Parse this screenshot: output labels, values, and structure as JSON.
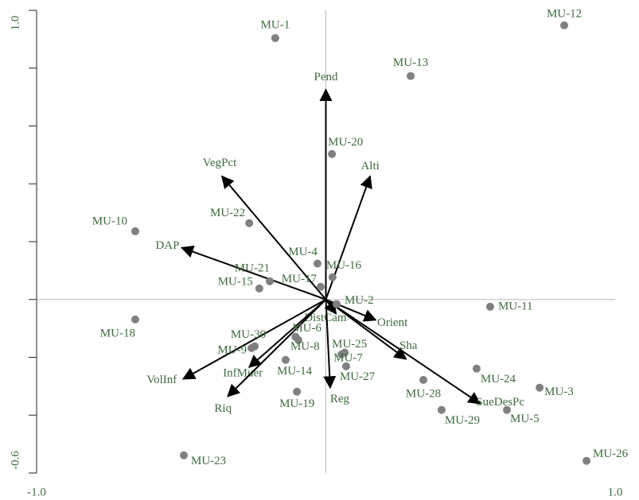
{
  "chart_data": {
    "type": "biplot",
    "points": {
      "labels": [
        "MU-1",
        "MU-12",
        "MU-13",
        "MU-20",
        "MU-10",
        "MU-22",
        "MU-4",
        "MU-16",
        "MU-21",
        "MU-15",
        "MU-17",
        "MU-2",
        "MU-11",
        "MU-18",
        "MU-6",
        "MU-30",
        "MU-9",
        "MU-8",
        "MU-25",
        "MU-7",
        "MU-27",
        "MU-14",
        "MU-19",
        "MU-28",
        "MU-24",
        "MU-3",
        "MU-29",
        "MU-5",
        "MU-26",
        "MU-23"
      ],
      "x": [
        -0.175,
        0.824,
        0.293,
        0.021,
        -0.659,
        -0.265,
        -0.029,
        0.023,
        -0.194,
        -0.23,
        -0.018,
        0.037,
        0.568,
        -0.659,
        -0.105,
        -0.246,
        -0.257,
        -0.095,
        0.065,
        0.054,
        0.07,
        -0.139,
        -0.1,
        0.337,
        0.521,
        0.739,
        0.4,
        0.626,
        0.901,
        -0.491
      ],
      "y": [
        0.904,
        0.948,
        0.773,
        0.503,
        0.236,
        0.264,
        0.124,
        0.077,
        0.063,
        0.038,
        0.044,
        -0.016,
        -0.025,
        -0.069,
        -0.129,
        -0.162,
        -0.168,
        -0.14,
        -0.184,
        -0.19,
        -0.231,
        -0.209,
        -0.319,
        -0.278,
        -0.239,
        -0.305,
        -0.382,
        -0.382,
        -0.558,
        -0.539
      ],
      "color": "#808080",
      "label_color": "#3d6b3d"
    },
    "vectors": {
      "labels": [
        "Pend",
        "Alti",
        "VegPct",
        "DAP",
        "Orient",
        "DistCam",
        "Sha",
        "SueDesPc",
        "Reg",
        "InfMuer",
        "Riq",
        "VolInf"
      ],
      "x": [
        0.0,
        0.153,
        -0.359,
        -0.498,
        0.172,
        0.035,
        0.277,
        0.533,
        0.015,
        -0.265,
        -0.339,
        -0.493
      ],
      "y": [
        0.726,
        0.426,
        0.426,
        0.179,
        -0.071,
        -0.049,
        -0.206,
        -0.36,
        -0.305,
        -0.234,
        -0.335,
        -0.275
      ],
      "color": "#000000",
      "label_color": "#3d6b3d"
    },
    "xlim": [
      -1,
      1
    ],
    "ylim": [
      -0.6,
      1
    ],
    "xticks": [
      {
        "value": -1,
        "label": "-1.0"
      },
      {
        "value": 1,
        "label": "1.0"
      }
    ],
    "yticks": [
      -0.6,
      {
        "value": 1,
        "label": "1.0"
      }
    ],
    "y_minor_ticks": [
      -0.4,
      -0.2,
      0,
      0.2,
      0.4,
      0.6,
      0.8
    ]
  }
}
